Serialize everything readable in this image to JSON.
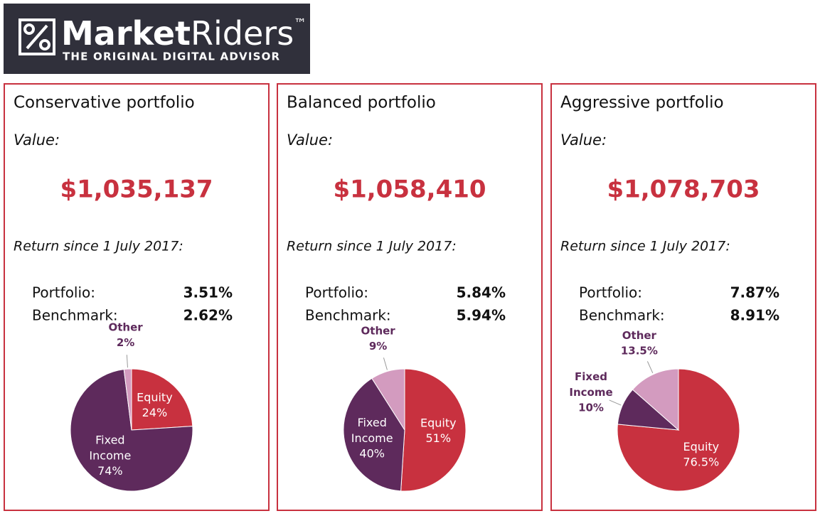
{
  "header": {
    "logo_bold": "Market",
    "logo_light": "Riders",
    "trademark": "™",
    "tagline": "THE ORIGINAL DIGITAL ADVISOR"
  },
  "panels": [
    {
      "title": "Conservative portfolio",
      "value_label": "Value:",
      "value": "$1,035,137",
      "return_label": "Return since 1 July 2017:",
      "rows": [
        [
          "Portfolio:",
          "3.51%"
        ],
        [
          "Benchmark:",
          "2.62%"
        ]
      ]
    },
    {
      "title": "Balanced portfolio",
      "value_label": "Value:",
      "value": "$1,058,410",
      "return_label": "Return since 1 July 2017:",
      "rows": [
        [
          "Portfolio:",
          "5.84%"
        ],
        [
          "Benchmark:",
          "5.94%"
        ]
      ]
    },
    {
      "title": "Aggressive portfolio",
      "value_label": "Value:",
      "value": "$1,078,703",
      "return_label": "Return since 1 July 2017:",
      "rows": [
        [
          "Portfolio:",
          "7.87%"
        ],
        [
          "Benchmark:",
          "8.91%"
        ]
      ]
    }
  ],
  "chart_data": [
    {
      "type": "pie",
      "categories": [
        "Equity",
        "Fixed Income",
        "Other"
      ],
      "values": [
        24,
        74,
        2
      ],
      "value_labels": [
        "24%",
        "74%",
        "2%"
      ],
      "colors": [
        "#c8313f",
        "#5e2a5c",
        "#d39bbf"
      ]
    },
    {
      "type": "pie",
      "categories": [
        "Equity",
        "Fixed Income",
        "Other"
      ],
      "values": [
        51,
        40,
        9
      ],
      "value_labels": [
        "51%",
        "40%",
        "9%"
      ],
      "colors": [
        "#c8313f",
        "#5e2a5c",
        "#d39bbf"
      ]
    },
    {
      "type": "pie",
      "categories": [
        "Equity",
        "Fixed Income",
        "Other"
      ],
      "values": [
        76.5,
        10,
        13.5
      ],
      "value_labels": [
        "76.5%",
        "10%",
        "13.5%"
      ],
      "colors": [
        "#c8313f",
        "#5e2a5c",
        "#d39bbf"
      ]
    }
  ]
}
